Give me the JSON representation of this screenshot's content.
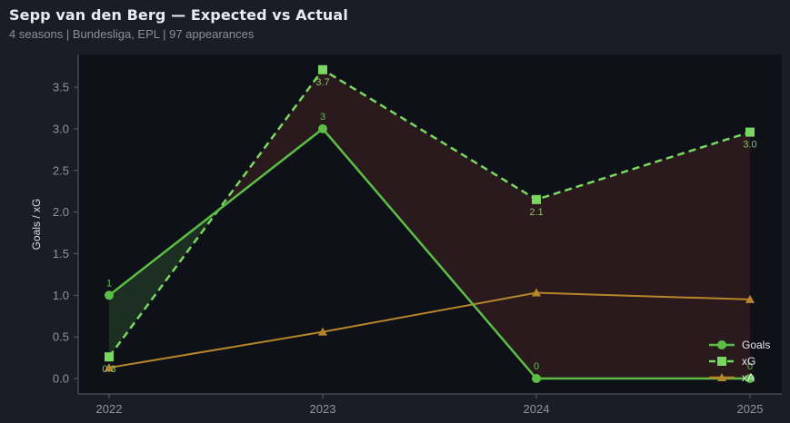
{
  "header": {
    "title": "Sepp van den Berg — Expected vs Actual",
    "subtitle": "4 seasons | Bundesliga, EPL | 97 appearances"
  },
  "colors": {
    "background": "#1a1d26",
    "plot_background": "#0e1118",
    "goals": "#5cbf45",
    "xg": "#78d860",
    "xa": "#b8862a",
    "fill_over": "#1f3324",
    "fill_under": "#2e1c1f",
    "axis": "#5a5f6a",
    "tick_text": "#8f949e"
  },
  "legend": {
    "items": [
      {
        "label": "Goals",
        "marker": "circle"
      },
      {
        "label": "xG",
        "marker": "square"
      },
      {
        "label": "xA",
        "marker": "triangle"
      }
    ]
  },
  "chart_data": {
    "type": "line",
    "title": "Sepp van den Berg — Expected vs Actual",
    "subtitle": "4 seasons | Bundesliga, EPL | 97 appearances",
    "xlabel": "",
    "ylabel": "Goals / xG",
    "categories": [
      "2022",
      "2023",
      "2024",
      "2025"
    ],
    "yticks": [
      "0.0",
      "0.5",
      "1.0",
      "1.5",
      "2.0",
      "2.5",
      "3.0",
      "3.5"
    ],
    "ylim": [
      -0.18,
      3.85
    ],
    "grid": false,
    "legend_position": "lower right",
    "series": [
      {
        "name": "Goals",
        "values": [
          1,
          3,
          0,
          0
        ],
        "labels": [
          "1",
          "3",
          "0",
          "0"
        ],
        "style": "solid",
        "marker": "circle"
      },
      {
        "name": "xG",
        "values": [
          0.26,
          3.71,
          2.15,
          2.96
        ],
        "labels": [
          "0.3",
          "3.7",
          "2.1",
          "3.0"
        ],
        "style": "dashed",
        "marker": "square"
      },
      {
        "name": "xA",
        "values": [
          0.13,
          0.56,
          1.03,
          0.95
        ],
        "style": "solid",
        "marker": "triangle"
      }
    ],
    "fills": [
      {
        "between": [
          "Goals",
          "xG"
        ],
        "where": "Goals > xG",
        "color": "green"
      },
      {
        "between": [
          "Goals",
          "xG"
        ],
        "where": "Goals < xG",
        "color": "red"
      }
    ]
  }
}
